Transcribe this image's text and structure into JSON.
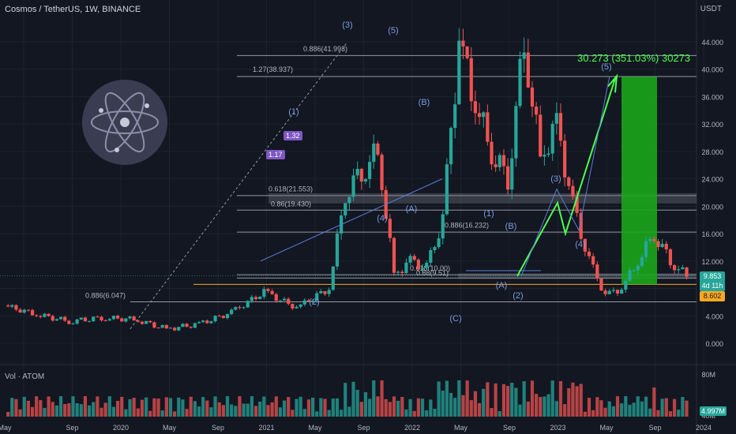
{
  "header": {
    "title": "Cosmos / TetherUS, 1W, BINANCE"
  },
  "axis": {
    "unit": "USDT",
    "ticks": [
      "44.000",
      "40.000",
      "36.000",
      "32.000",
      "28.000",
      "24.000",
      "20.000",
      "16.000",
      "12.000",
      "8.000",
      "4.000",
      "0.000"
    ],
    "vol_ticks": [
      "80M",
      "40M"
    ],
    "x_ticks": [
      "May",
      "Sep",
      "2020",
      "May",
      "Sep",
      "2021",
      "May",
      "Sep",
      "2022",
      "May",
      "Sep",
      "2023",
      "May",
      "Sep",
      "2024"
    ]
  },
  "price_tags": {
    "last": "9.853",
    "countdown": "4d 11h",
    "level": "8.602"
  },
  "volume": {
    "label": "Vol · ATOM",
    "value": "4.997M"
  },
  "target": {
    "text": "30.273 (351.03%) 30273"
  },
  "fib_labels": [
    "0.886(41.993)",
    "1.27(38.937)",
    "0.618(21.553)",
    "0.86(19.430)",
    "0.886(16.232)",
    "0.618(10.00)",
    "0.86(9.51)",
    "0.886(6.047)"
  ],
  "wave_labels": [
    "(3)",
    "(5)",
    "(1)",
    "(B)",
    "(4)",
    "(A)",
    "(2)",
    "(1)",
    "(B)",
    "(A)",
    "(C)",
    "(2)",
    "(3)",
    "(4)",
    "(5)"
  ],
  "badges": [
    "1.17",
    "1.32"
  ],
  "colors": {
    "background": "#131722",
    "up": "#26a69a",
    "down": "#ef5350",
    "projection": "#4cff4c",
    "wave": "#5b7cd6"
  },
  "chart_data": {
    "type": "candlestick",
    "symbol": "Cosmos / TetherUS",
    "interval": "1W",
    "exchange": "BINANCE",
    "ylim": [
      0,
      46
    ],
    "path_points": [
      [
        "2019-05",
        5.5
      ],
      [
        "2019-07",
        4.2
      ],
      [
        "2019-09",
        3.2
      ],
      [
        "2019-11",
        3.7
      ],
      [
        "2020-01",
        3.5
      ],
      [
        "2020-03",
        2.1
      ],
      [
        "2020-05",
        2.8
      ],
      [
        "2020-07",
        4.5
      ],
      [
        "2020-09",
        7.5
      ],
      [
        "2020-11",
        5.2
      ],
      [
        "2021-01",
        8.0
      ],
      [
        "2021-02",
        22.0
      ],
      [
        "2021-03",
        25.0
      ],
      [
        "2021-04",
        28.0
      ],
      [
        "2021-05",
        10.0
      ],
      [
        "2021-06",
        12.0
      ],
      [
        "2021-07",
        11.0
      ],
      [
        "2021-08",
        18.0
      ],
      [
        "2021-09",
        44.0
      ],
      [
        "2021-10",
        35.0
      ],
      [
        "2021-11",
        28.0
      ],
      [
        "2021-12",
        24.0
      ],
      [
        "2022-01",
        44.0
      ],
      [
        "2022-02",
        27.0
      ],
      [
        "2022-03",
        32.0
      ],
      [
        "2022-04",
        20.0
      ],
      [
        "2022-05",
        12.0
      ],
      [
        "2022-06",
        7.0
      ],
      [
        "2022-07",
        8.0
      ],
      [
        "2022-08",
        12.0
      ],
      [
        "2022-09",
        16.0
      ],
      [
        "2022-10",
        12.0
      ],
      [
        "2022-11",
        9.8
      ]
    ],
    "levels": [
      41.993,
      38.937,
      21.553,
      19.43,
      16.232,
      10.0,
      9.51,
      8.602,
      6.047
    ],
    "projection": [
      [
        "2022-11",
        9.8
      ],
      [
        "2023-02",
        20.5
      ],
      [
        "2023-04",
        16.0
      ],
      [
        "2023-08",
        39.0
      ]
    ],
    "target_box": {
      "from": 8.6,
      "to": 38.9
    }
  }
}
